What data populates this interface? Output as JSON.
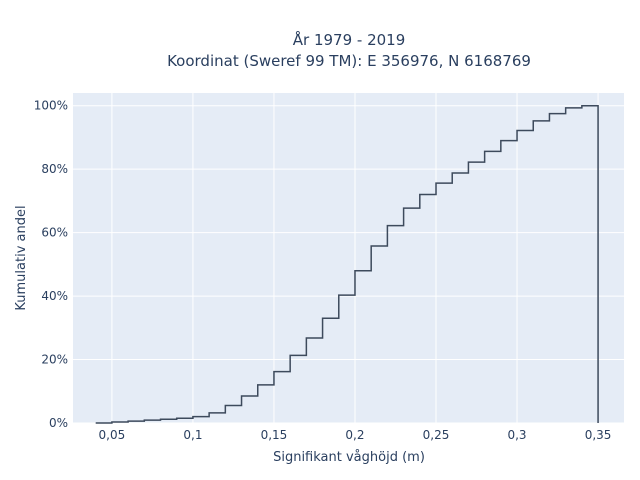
{
  "chart_data": {
    "type": "line",
    "line_shape": "step",
    "title": "År 1979 - 2019",
    "subtitle": "Koordinat (Sweref 99 TM): E 356976, N 6168769",
    "xlabel": "Signifikant våghöjd (m)",
    "ylabel": "Kumulativ andel",
    "xlim": [
      0.026,
      0.366
    ],
    "ylim": [
      0,
      1.04
    ],
    "x_ticks": [
      0.05,
      0.1,
      0.15,
      0.2,
      0.25,
      0.3,
      0.35
    ],
    "x_tick_labels": [
      "0,05",
      "0,1",
      "0,15",
      "0,2",
      "0,25",
      "0,3",
      "0,35"
    ],
    "y_ticks": [
      0,
      0.2,
      0.4,
      0.6,
      0.8,
      1.0
    ],
    "y_tick_labels": [
      "0%",
      "20%",
      "40%",
      "60%",
      "80%",
      "100%"
    ],
    "grid": true,
    "colors": {
      "plot_bg": "#e5ecf6",
      "grid": "#ffffff",
      "line": "#3d4a5c",
      "text": "#2a3f5f"
    },
    "series": [
      {
        "x": [
          0.04,
          0.05,
          0.06,
          0.07,
          0.08,
          0.09,
          0.1,
          0.11,
          0.12,
          0.13,
          0.14,
          0.15,
          0.16,
          0.17,
          0.18,
          0.19,
          0.2,
          0.21,
          0.22,
          0.23,
          0.24,
          0.25,
          0.26,
          0.27,
          0.28,
          0.29,
          0.3,
          0.31,
          0.32,
          0.33,
          0.34,
          0.35
        ],
        "y": [
          0,
          0.003,
          0.006,
          0.009,
          0.012,
          0.015,
          0.02,
          0.032,
          0.055,
          0.085,
          0.12,
          0.162,
          0.213,
          0.268,
          0.33,
          0.403,
          0.48,
          0.558,
          0.622,
          0.677,
          0.72,
          0.756,
          0.788,
          0.822,
          0.856,
          0.89,
          0.922,
          0.952,
          0.975,
          0.993,
          1.0,
          1.0
        ],
        "drop_to": 0
      }
    ]
  }
}
